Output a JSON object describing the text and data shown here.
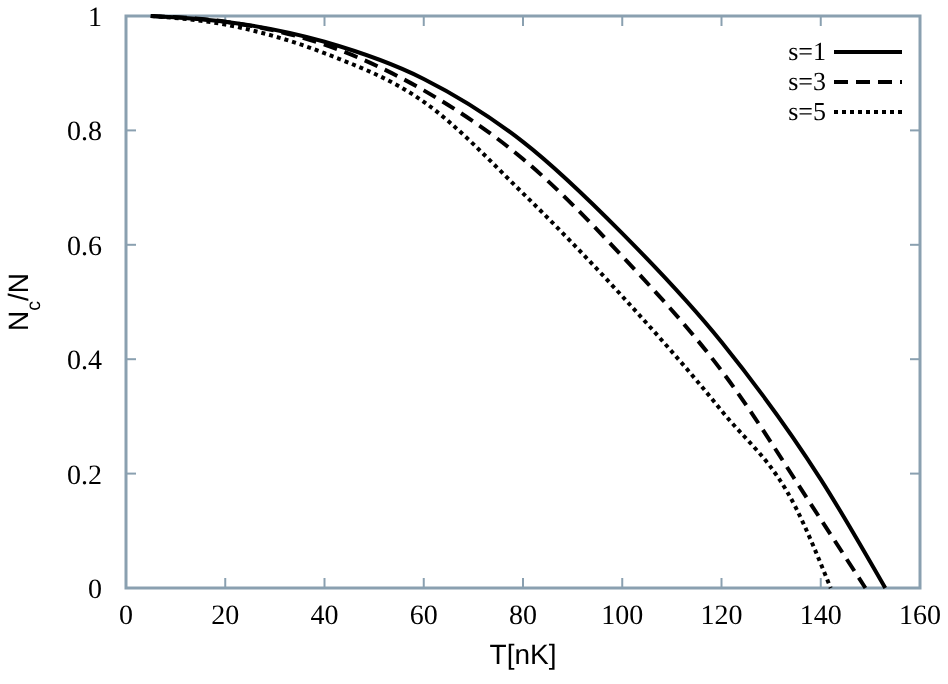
{
  "chart_data": {
    "type": "line",
    "xlabel": "T[nK]",
    "ylabel": "N$_{c}$/N",
    "xlim": [
      0,
      160
    ],
    "ylim": [
      0,
      1
    ],
    "xticks": [
      0,
      20,
      40,
      60,
      80,
      100,
      120,
      140,
      160
    ],
    "yticks": [
      0,
      0.2,
      0.4,
      0.6,
      0.8,
      1
    ],
    "grid": false,
    "legend": "top right",
    "series": [
      {
        "name": "s=1",
        "color": "#000000",
        "line_style": "solid",
        "x": [
          5,
          20,
          40,
          60,
          80,
          100,
          120,
          140,
          153
        ],
        "values": [
          1,
          0.99,
          0.955,
          0.89,
          0.78,
          0.62,
          0.43,
          0.19,
          0
        ]
      },
      {
        "name": "s=3",
        "color": "#000000",
        "line_style": "dashed",
        "x": [
          5,
          20,
          40,
          60,
          80,
          100,
          120,
          140,
          149
        ],
        "values": [
          1,
          0.99,
          0.95,
          0.87,
          0.75,
          0.58,
          0.38,
          0.12,
          0
        ]
      },
      {
        "name": "s=5",
        "color": "#000000",
        "line_style": "dotted",
        "x": [
          5,
          20,
          40,
          60,
          80,
          100,
          120,
          135,
          142
        ],
        "values": [
          1,
          0.985,
          0.935,
          0.85,
          0.69,
          0.51,
          0.31,
          0.14,
          0
        ]
      }
    ]
  }
}
